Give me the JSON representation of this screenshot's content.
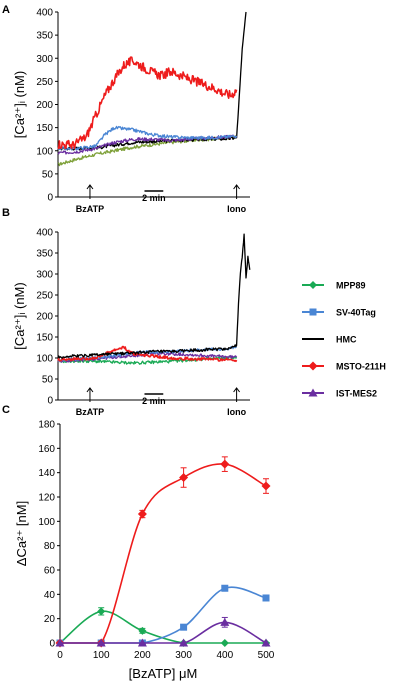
{
  "colors": {
    "MPP89": "#1aaa55",
    "SV-40Tag": "#4a86d4",
    "HMC": "#000000",
    "MSTO-211H": "#ee1c1c",
    "IST-MES2": "#6a2ea0",
    "olive": "#7fa13a"
  },
  "legend": [
    "MPP89",
    "SV-40Tag",
    "HMC",
    "MSTO-211H",
    "IST-MES2"
  ],
  "legend_position": "right, between panels B and C",
  "chart_data": [
    {
      "panel": "A",
      "type": "line",
      "ylabel": "[Ca²⁺]ᵢ (nM)",
      "ylim": [
        0,
        400
      ],
      "yticks": [
        0,
        50,
        100,
        150,
        200,
        250,
        300,
        350,
        400
      ],
      "xrange": [
        0,
        100
      ],
      "annotations": {
        "stimulus": "BzATP",
        "scalebar": "2 min",
        "ionophore": "Iono"
      },
      "series": [
        {
          "color": "#7fa13a",
          "x": [
            0,
            10,
            20,
            30,
            40,
            50,
            60,
            70,
            80,
            90,
            95
          ],
          "values": [
            70,
            82,
            92,
            100,
            108,
            113,
            118,
            122,
            125,
            128,
            130
          ]
        },
        {
          "name": "HMC",
          "x": [
            0,
            10,
            20,
            30,
            40,
            50,
            60,
            70,
            80,
            90,
            95,
            96,
            98,
            100
          ],
          "values": [
            105,
            105,
            106,
            112,
            118,
            120,
            122,
            124,
            125,
            126,
            128,
            190,
            320,
            400
          ]
        },
        {
          "name": "IST-MES2",
          "x": [
            0,
            10,
            20,
            30,
            40,
            50,
            60,
            70,
            80,
            90,
            95
          ],
          "values": [
            95,
            98,
            105,
            118,
            125,
            125,
            122,
            125,
            128,
            130,
            132
          ]
        },
        {
          "name": "SV-40Tag",
          "x": [
            0,
            10,
            20,
            25,
            30,
            40,
            50,
            60,
            70,
            80,
            90,
            95
          ],
          "values": [
            105,
            105,
            110,
            135,
            150,
            145,
            135,
            130,
            128,
            128,
            130,
            132
          ]
        },
        {
          "name": "MSTO-211H",
          "x": [
            0,
            8,
            15,
            20,
            25,
            30,
            35,
            40,
            45,
            50,
            55,
            60,
            70,
            80,
            85,
            88,
            92,
            95
          ],
          "values": [
            115,
            112,
            130,
            175,
            220,
            255,
            285,
            295,
            282,
            270,
            262,
            272,
            255,
            240,
            232,
            225,
            220,
            232
          ]
        }
      ]
    },
    {
      "panel": "B",
      "type": "line",
      "ylabel": "[Ca²⁺]ᵢ (nM)",
      "ylim": [
        0,
        400
      ],
      "yticks": [
        0,
        50,
        100,
        150,
        200,
        250,
        300,
        350,
        400
      ],
      "xrange": [
        0,
        100
      ],
      "annotations": {
        "stimulus": "BzATP",
        "scalebar": "2 min",
        "ionophore": "Iono"
      },
      "series": [
        {
          "name": "MPP89",
          "x": [
            0,
            10,
            20,
            30,
            40,
            50,
            60,
            70,
            80,
            90,
            95
          ],
          "values": [
            92,
            93,
            92,
            90,
            88,
            90,
            92,
            95,
            98,
            100,
            102
          ]
        },
        {
          "name": "IST-MES2",
          "x": [
            0,
            10,
            20,
            30,
            40,
            50,
            60,
            70,
            80,
            90,
            95
          ],
          "values": [
            92,
            95,
            98,
            102,
            105,
            110,
            110,
            108,
            105,
            103,
            102
          ]
        },
        {
          "name": "SV-40Tag",
          "x": [
            0,
            10,
            20,
            30,
            40,
            50,
            60,
            70,
            80,
            90,
            95
          ],
          "values": [
            95,
            98,
            100,
            105,
            112,
            115,
            115,
            118,
            120,
            122,
            125
          ]
        },
        {
          "name": "MSTO-211H",
          "x": [
            0,
            10,
            20,
            30,
            35,
            40,
            50,
            60,
            70,
            80,
            90,
            95
          ],
          "values": [
            95,
            98,
            100,
            118,
            125,
            110,
            105,
            100,
            98,
            97,
            96,
            95
          ]
        },
        {
          "name": "HMC",
          "x": [
            0,
            10,
            20,
            30,
            40,
            50,
            60,
            70,
            80,
            90,
            95,
            96,
            97,
            98,
            99,
            100,
            101,
            102
          ],
          "values": [
            102,
            105,
            108,
            110,
            112,
            115,
            115,
            118,
            120,
            122,
            130,
            230,
            300,
            340,
            395,
            290,
            340,
            310
          ]
        }
      ]
    },
    {
      "panel": "C",
      "type": "line",
      "xlabel": "[BzATP] μM",
      "ylabel": "ΔCa²⁺ [nM]",
      "xlim": [
        0,
        500
      ],
      "ylim": [
        0,
        180
      ],
      "xticks": [
        0,
        100,
        200,
        300,
        400,
        500
      ],
      "yticks": [
        0,
        20,
        40,
        60,
        80,
        100,
        120,
        140,
        160,
        180
      ],
      "series": [
        {
          "name": "MPP89",
          "x": [
            0,
            100,
            200,
            300,
            400,
            500
          ],
          "values": [
            0,
            26,
            10,
            0,
            0,
            0
          ],
          "err": [
            0,
            3,
            2,
            0,
            0,
            0
          ]
        },
        {
          "name": "SV-40Tag",
          "x": [
            0,
            100,
            200,
            300,
            400,
            500
          ],
          "values": [
            0,
            0,
            0,
            13,
            45,
            37
          ],
          "err": [
            0,
            0,
            0,
            1,
            2,
            2
          ]
        },
        {
          "name": "MSTO-211H",
          "x": [
            0,
            100,
            200,
            300,
            400,
            500
          ],
          "values": [
            0,
            0,
            106,
            136,
            147,
            129
          ],
          "err": [
            0,
            0,
            3,
            8,
            6,
            6
          ]
        },
        {
          "name": "IST-MES2",
          "x": [
            0,
            100,
            200,
            300,
            400,
            500
          ],
          "values": [
            0,
            0,
            0,
            0,
            17,
            0
          ],
          "err": [
            0,
            0,
            0,
            0,
            4,
            0
          ]
        }
      ]
    }
  ]
}
